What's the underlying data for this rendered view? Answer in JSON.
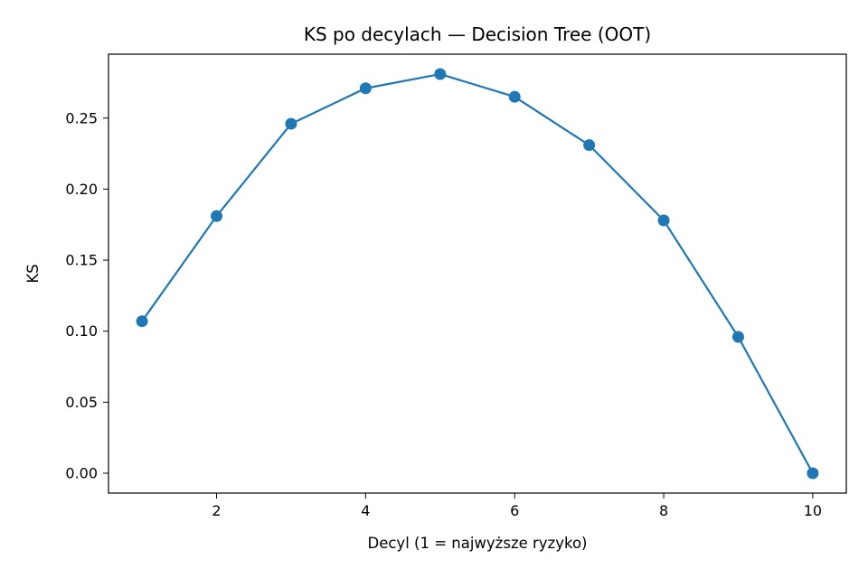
{
  "chart_data": {
    "type": "line",
    "title": "KS po decylach — Decision Tree (OOT)",
    "xlabel": "Decyl (1 = najwyższe ryzyko)",
    "ylabel": "KS",
    "x": [
      1,
      2,
      3,
      4,
      5,
      6,
      7,
      8,
      9,
      10
    ],
    "series": [
      {
        "values": [
          0.107,
          0.181,
          0.246,
          0.271,
          0.281,
          0.265,
          0.231,
          0.178,
          0.096,
          0.0
        ],
        "color": "#1f77b4",
        "marker": "circle"
      }
    ],
    "xlim": [
      0.55,
      10.45
    ],
    "ylim": [
      -0.014,
      0.295
    ],
    "xticks": [
      2,
      4,
      6,
      8,
      10
    ],
    "xtick_labels": [
      "2",
      "4",
      "6",
      "8",
      "10"
    ],
    "yticks": [
      0.0,
      0.05,
      0.1,
      0.15,
      0.2,
      0.25
    ],
    "ytick_labels": [
      "0.00",
      "0.05",
      "0.10",
      "0.15",
      "0.20",
      "0.25"
    ],
    "grid": false,
    "legend": "none"
  }
}
